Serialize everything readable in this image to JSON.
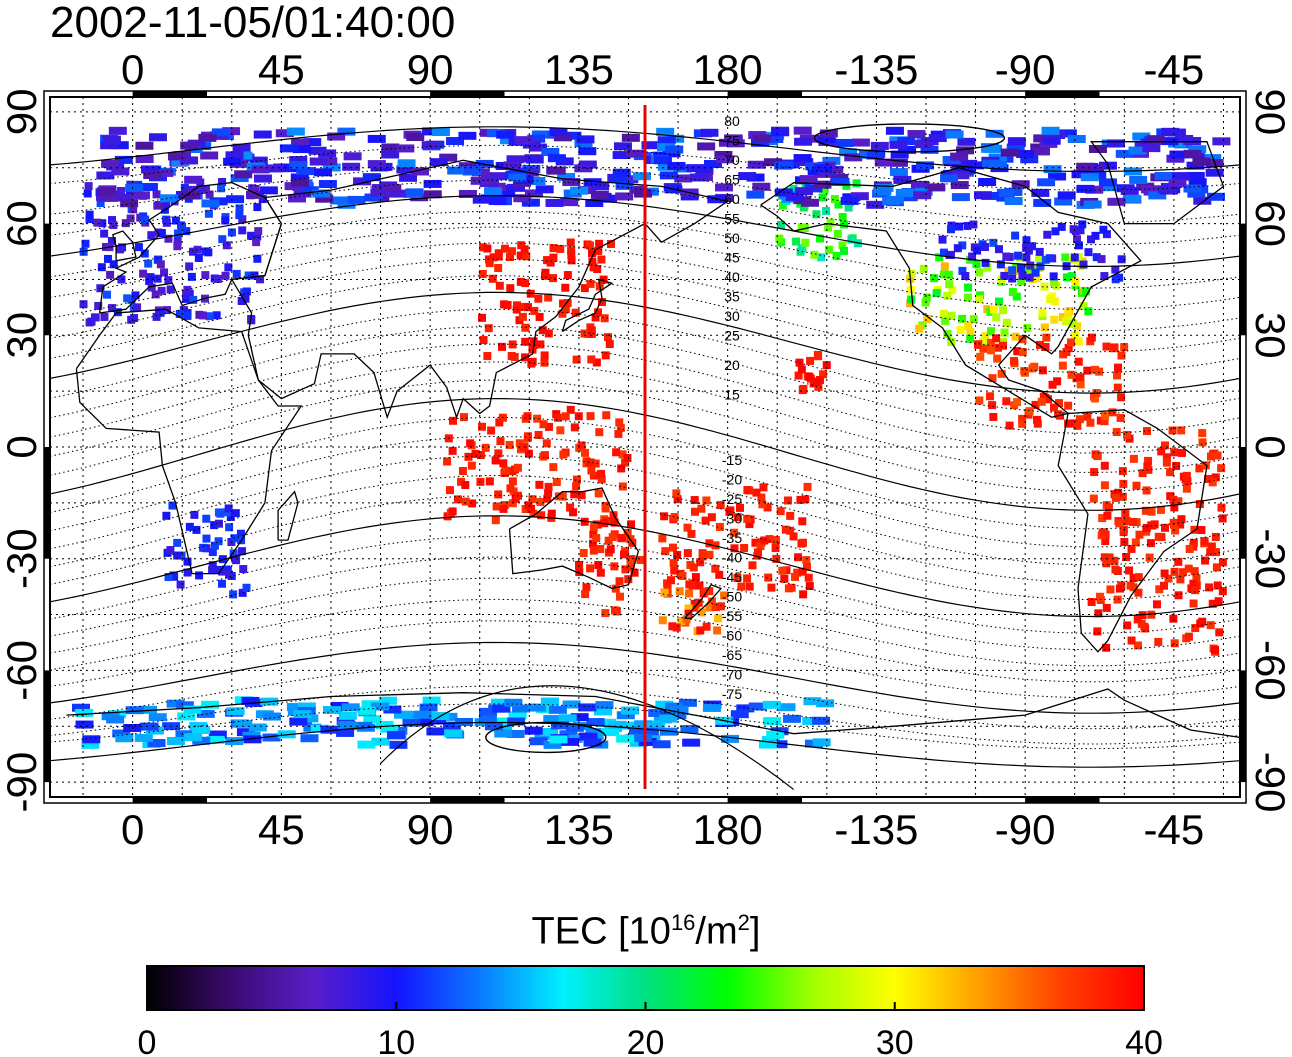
{
  "title": "2002-11-05/01:40:00",
  "map": {
    "x_ticks": [
      "0",
      "45",
      "90",
      "135",
      "180",
      "-135",
      "-90",
      "-45"
    ],
    "x_tick_values": [
      0,
      45,
      90,
      135,
      180,
      225,
      270,
      315
    ],
    "y_ticks": [
      "90",
      "60",
      "30",
      "0",
      "-30",
      "-60",
      "-90"
    ],
    "y_tick_values": [
      90,
      60,
      30,
      0,
      -30,
      -60,
      -90
    ],
    "lon_range": [
      -25,
      335
    ],
    "lat_range": [
      -94,
      94
    ],
    "dateline_lon": 155,
    "dateline_color": "#ee0000",
    "contour_labels_north": [
      "80",
      "75",
      "70",
      "65",
      "60",
      "55",
      "50",
      "45",
      "40",
      "35",
      "30",
      "25",
      "20",
      "15"
    ],
    "contour_labels_south": [
      "-15",
      "-20",
      "-25",
      "-30",
      "-35",
      "-40",
      "-45",
      "-50",
      "-55",
      "-60",
      "-65",
      "-70",
      "-75"
    ]
  },
  "colorbar": {
    "title_prefix": "TEC  [10",
    "title_sup1": "16",
    "title_mid": "/m",
    "title_sup2": "2",
    "title_suffix": "]",
    "ticks": [
      "0",
      "10",
      "20",
      "30",
      "40"
    ],
    "range": [
      0,
      40
    ],
    "colors": [
      "#000000",
      "#3a0a6e",
      "#5a1ec8",
      "#1414ff",
      "#0a78ff",
      "#00f0ff",
      "#00e080",
      "#00ff00",
      "#a0ff00",
      "#ffff00",
      "#ffa000",
      "#ff4000",
      "#ff0000"
    ]
  },
  "tec_clusters": [
    {
      "region": "europe",
      "lon": [
        -15,
        40
      ],
      "lat": [
        33,
        72
      ],
      "tec": [
        6,
        12
      ]
    },
    {
      "region": "usa",
      "lon": [
        235,
        290
      ],
      "lat": [
        28,
        52
      ],
      "tec": [
        22,
        33
      ]
    },
    {
      "region": "canada",
      "lon": [
        245,
        300
      ],
      "lat": [
        45,
        60
      ],
      "tec": [
        7,
        12
      ]
    },
    {
      "region": "japan-china",
      "lon": [
        105,
        145
      ],
      "lat": [
        22,
        55
      ],
      "tec": [
        38,
        40
      ]
    },
    {
      "region": "indonesia",
      "lon": [
        95,
        150
      ],
      "lat": [
        -20,
        10
      ],
      "tec": [
        37,
        40
      ]
    },
    {
      "region": "australia-east",
      "lon": [
        135,
        155
      ],
      "lat": [
        -45,
        -20
      ],
      "tec": [
        37,
        40
      ]
    },
    {
      "region": "pacific-south",
      "lon": [
        160,
        205
      ],
      "lat": [
        -40,
        -10
      ],
      "tec": [
        37,
        40
      ]
    },
    {
      "region": "nz",
      "lon": [
        160,
        180
      ],
      "lat": [
        -50,
        -38
      ],
      "tec": [
        32,
        40
      ]
    },
    {
      "region": "south-america",
      "lon": [
        290,
        330
      ],
      "lat": [
        -55,
        5
      ],
      "tec": [
        37,
        40
      ]
    },
    {
      "region": "central-america",
      "lon": [
        255,
        300
      ],
      "lat": [
        5,
        30
      ],
      "tec": [
        36,
        40
      ]
    },
    {
      "region": "alaska",
      "lon": [
        195,
        220
      ],
      "lat": [
        50,
        72
      ],
      "tec": [
        18,
        26
      ]
    },
    {
      "region": "hawaii",
      "lon": [
        200,
        210
      ],
      "lat": [
        15,
        25
      ],
      "tec": [
        38,
        40
      ]
    },
    {
      "region": "africa-south",
      "lon": [
        10,
        35
      ],
      "lat": [
        -40,
        -15
      ],
      "tec": [
        8,
        12
      ]
    },
    {
      "region": "antarctica",
      "lon": [
        -20,
        210
      ],
      "lat": [
        -80,
        -68
      ],
      "tec": [
        10,
        17
      ]
    },
    {
      "region": "arctic",
      "lon": [
        -10,
        330
      ],
      "lat": [
        65,
        85
      ],
      "tec": [
        5,
        14
      ]
    }
  ]
}
